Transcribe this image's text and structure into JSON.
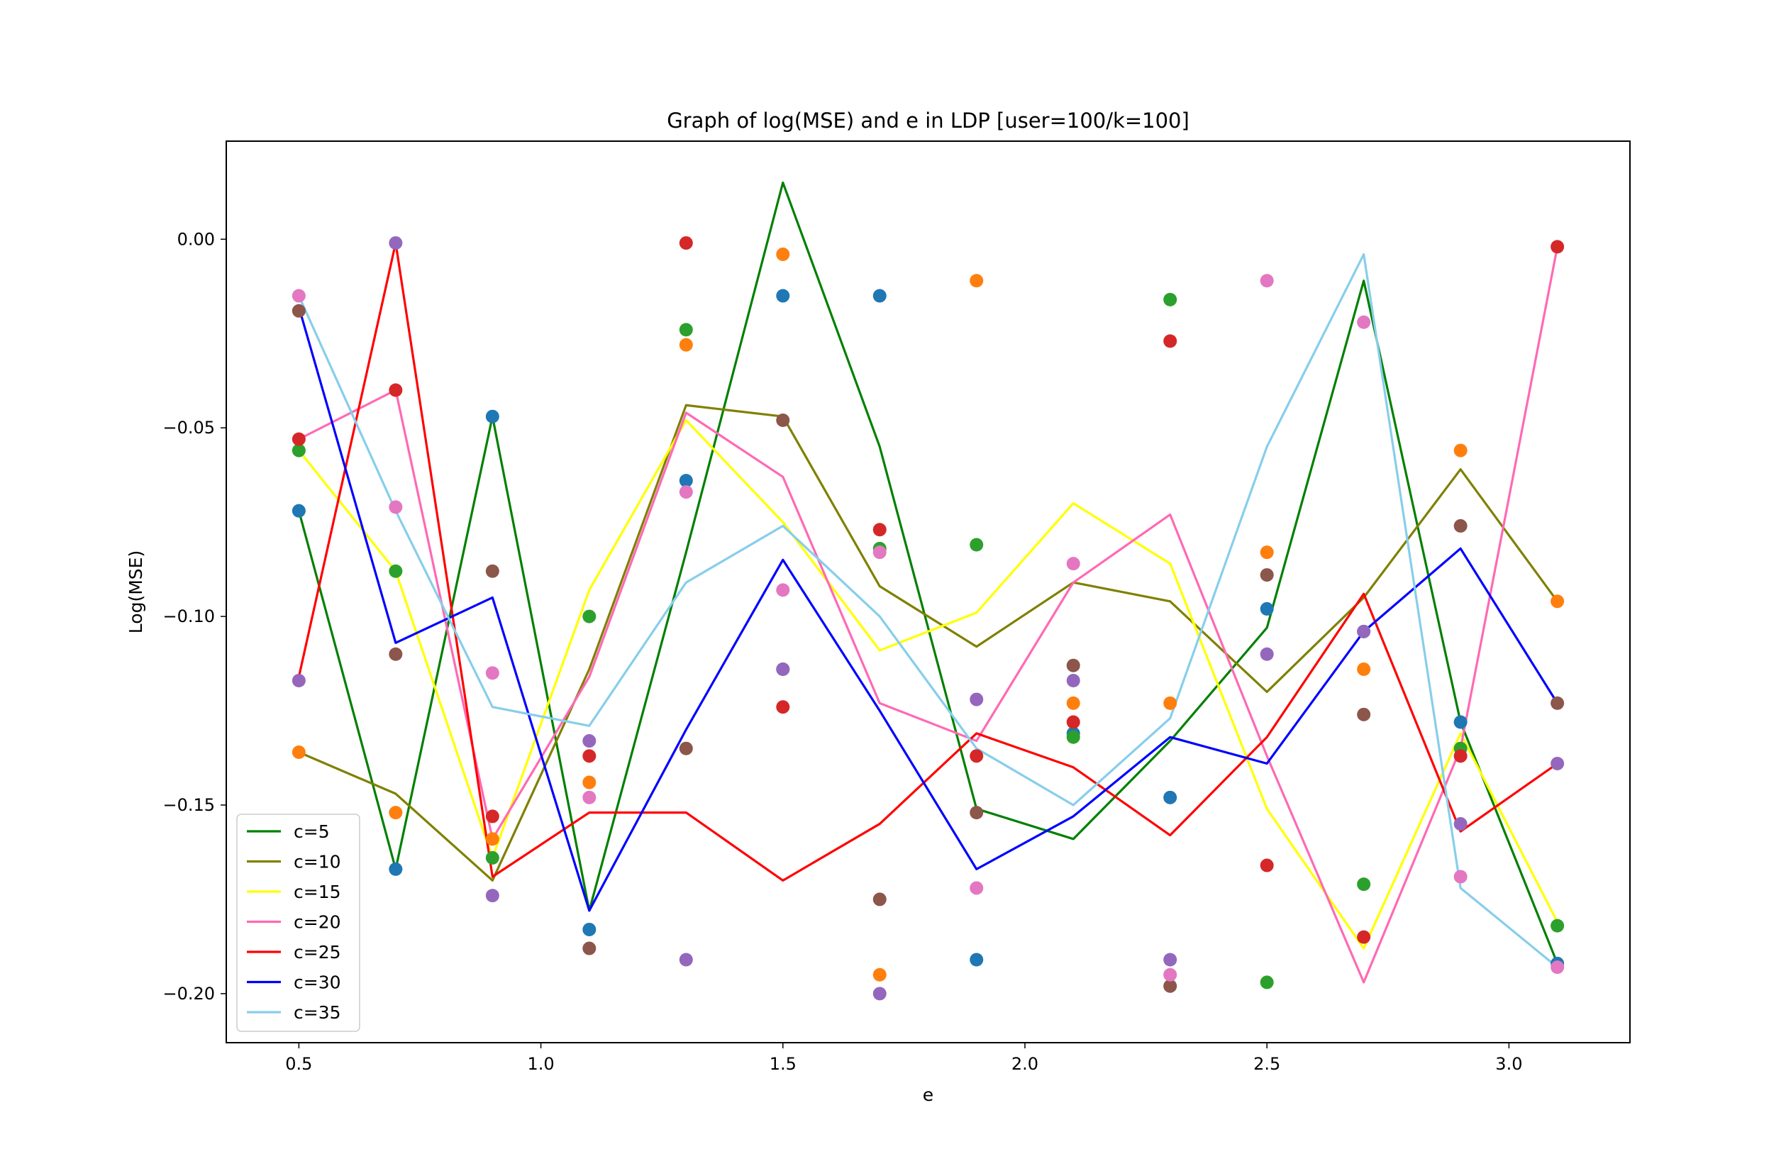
{
  "chart_data": {
    "type": "line",
    "title": "Graph of log(MSE) and e in LDP [user=100/k=100]",
    "xlabel": "e",
    "ylabel": "Log(MSE)",
    "x": [
      0.5,
      0.7,
      0.9,
      1.1,
      1.3,
      1.5,
      1.7,
      1.9,
      2.1,
      2.3,
      2.5,
      2.7,
      2.9,
      3.1
    ],
    "xlim": [
      0.35,
      3.25
    ],
    "ylim": [
      -0.213,
      0.026
    ],
    "xticks": [
      0.5,
      1.0,
      1.5,
      2.0,
      2.5,
      3.0
    ],
    "xtick_labels": [
      "0.5",
      "1.0",
      "1.5",
      "2.0",
      "2.5",
      "3.0"
    ],
    "yticks": [
      0.0,
      -0.05,
      -0.1,
      -0.15,
      -0.2
    ],
    "ytick_labels": [
      "0.00",
      "−0.05",
      "−0.10",
      "−0.15",
      "−0.20"
    ],
    "grid": false,
    "legend_position": "lower-left",
    "series": [
      {
        "name": "c=5",
        "color": "#008000",
        "values": [
          -0.072,
          -0.167,
          -0.047,
          -0.178,
          -0.083,
          0.015,
          -0.055,
          -0.151,
          -0.159,
          -0.133,
          -0.103,
          -0.011,
          -0.128,
          -0.192
        ]
      },
      {
        "name": "c=10",
        "color": "#808000",
        "values": [
          -0.136,
          -0.147,
          -0.17,
          -0.114,
          -0.044,
          -0.047,
          -0.092,
          -0.108,
          -0.091,
          -0.096,
          -0.12,
          -0.095,
          -0.061,
          -0.096
        ]
      },
      {
        "name": "c=15",
        "color": "#ffff00",
        "values": [
          -0.056,
          -0.088,
          -0.164,
          -0.093,
          -0.048,
          -0.075,
          -0.109,
          -0.099,
          -0.07,
          -0.086,
          -0.151,
          -0.188,
          -0.131,
          -0.181
        ]
      },
      {
        "name": "c=20",
        "color": "#ff69b4",
        "values": [
          -0.053,
          -0.04,
          -0.159,
          -0.116,
          -0.046,
          -0.063,
          -0.123,
          -0.133,
          -0.091,
          -0.073,
          -0.137,
          -0.197,
          -0.135,
          -0.002
        ]
      },
      {
        "name": "c=25",
        "color": "#ff0000",
        "values": [
          -0.116,
          -0.001,
          -0.169,
          -0.152,
          -0.152,
          -0.17,
          -0.155,
          -0.131,
          -0.14,
          -0.158,
          -0.132,
          -0.094,
          -0.157,
          -0.139
        ]
      },
      {
        "name": "c=30",
        "color": "#0000ff",
        "values": [
          -0.018,
          -0.107,
          -0.095,
          -0.178,
          -0.13,
          -0.085,
          -0.125,
          -0.167,
          -0.153,
          -0.132,
          -0.139,
          -0.104,
          -0.082,
          -0.123
        ]
      },
      {
        "name": "c=35",
        "color": "#87ceeb",
        "values": [
          -0.015,
          -0.072,
          -0.124,
          -0.129,
          -0.091,
          -0.076,
          -0.1,
          -0.135,
          -0.15,
          -0.127,
          -0.055,
          -0.004,
          -0.172,
          -0.193
        ]
      }
    ],
    "scatter": [
      {
        "color": "#1f77b4",
        "values": [
          -0.072,
          -0.167,
          -0.047,
          -0.183,
          -0.064,
          -0.015,
          -0.015,
          -0.191,
          -0.131,
          -0.148,
          -0.098,
          -0.104,
          -0.128,
          -0.192
        ]
      },
      {
        "color": "#ff7f0e",
        "values": [
          -0.136,
          -0.152,
          -0.159,
          -0.144,
          -0.028,
          -0.004,
          -0.195,
          -0.011,
          -0.123,
          -0.123,
          -0.083,
          -0.114,
          -0.056,
          -0.096
        ]
      },
      {
        "color": "#2ca02c",
        "values": [
          -0.056,
          -0.088,
          -0.164,
          -0.1,
          -0.024,
          -0.114,
          -0.082,
          -0.081,
          -0.132,
          -0.016,
          -0.197,
          -0.171,
          -0.135,
          -0.182
        ]
      },
      {
        "color": "#d62728",
        "values": [
          -0.053,
          -0.04,
          -0.153,
          -0.137,
          -0.001,
          -0.124,
          -0.077,
          -0.137,
          -0.128,
          -0.027,
          -0.166,
          -0.185,
          -0.137,
          -0.002
        ]
      },
      {
        "color": "#9467bd",
        "values": [
          -0.117,
          -0.001,
          -0.174,
          -0.133,
          -0.191,
          -0.114,
          -0.2,
          -0.122,
          -0.117,
          -0.191,
          -0.11,
          -0.104,
          -0.155,
          -0.139
        ]
      },
      {
        "color": "#8c564b",
        "values": [
          -0.019,
          -0.11,
          -0.088,
          -0.188,
          -0.135,
          -0.048,
          -0.175,
          -0.152,
          -0.113,
          -0.198,
          -0.089,
          -0.126,
          -0.076,
          -0.123
        ]
      },
      {
        "color": "#e377c2",
        "values": [
          -0.015,
          -0.071,
          -0.115,
          -0.148,
          -0.067,
          -0.093,
          -0.083,
          -0.172,
          -0.086,
          -0.195,
          -0.011,
          -0.022,
          -0.169,
          -0.193
        ]
      }
    ]
  }
}
